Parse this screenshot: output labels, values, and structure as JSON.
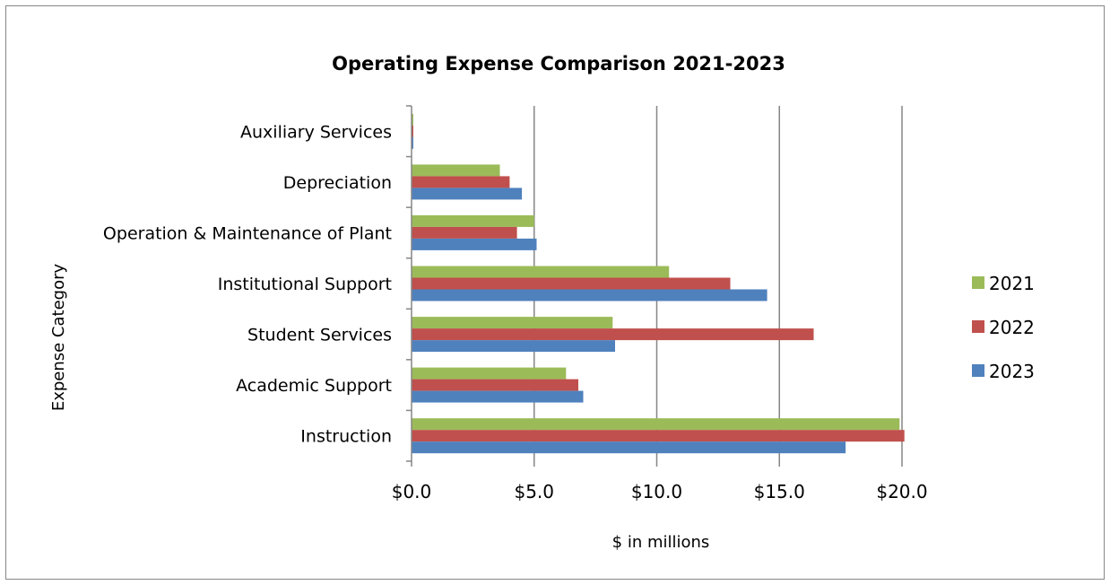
{
  "chart_data": {
    "type": "bar",
    "orientation": "horizontal",
    "title": "Operating Expense Comparison 2021-2023",
    "xlabel": "$ in millions",
    "ylabel": "Expense Category",
    "categories": [
      "Instruction",
      "Academic Support",
      "Student Services",
      "Institutional Support",
      "Operation & Maintenance of Plant",
      "Depreciation",
      "Auxiliary Services"
    ],
    "series": [
      {
        "name": "2021",
        "color": "#9BBB59",
        "values": [
          19.9,
          6.3,
          8.2,
          10.5,
          5.0,
          3.6,
          0.0
        ]
      },
      {
        "name": "2022",
        "color": "#C0504D",
        "values": [
          20.1,
          6.8,
          16.4,
          13.0,
          4.3,
          4.0,
          0.0
        ]
      },
      {
        "name": "2023",
        "color": "#4F81BD",
        "values": [
          17.7,
          7.0,
          8.3,
          14.5,
          5.1,
          4.5,
          0.0
        ]
      }
    ],
    "xlim": [
      0,
      20
    ],
    "xticks": [
      0,
      5,
      10,
      15,
      20
    ],
    "xtick_labels": [
      "$0.0",
      "$5.0",
      "$10.0",
      "$15.0",
      "$20.0"
    ],
    "grid": "vertical major gridlines",
    "legend": "right"
  }
}
